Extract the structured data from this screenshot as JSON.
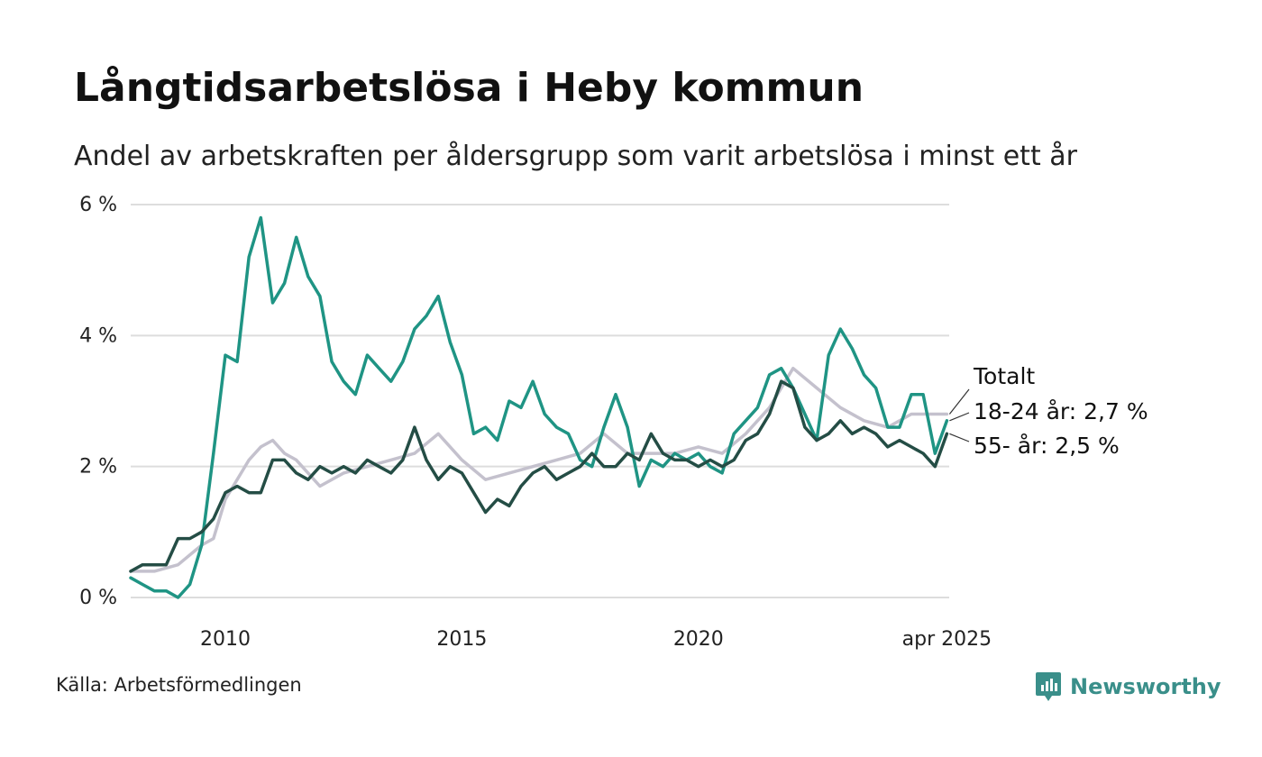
{
  "title": "Långtidsarbetslösa i Heby kommun",
  "subtitle": "Andel av arbetskraften per åldersgrupp som varit arbetslösa i minst ett år",
  "source": "Källa: Arbetsförmedlingen",
  "brand": "Newsworthy",
  "brand_icon": "bar-chart-badge-icon",
  "colors": {
    "youth": "#1f9484",
    "senior": "#244d45",
    "total": "#c4c1cd",
    "grid": "#dddddd",
    "brand": "#3a8f8a"
  },
  "chart_data": {
    "type": "line",
    "x_unit": "year",
    "xlim": [
      2008.0,
      2025.3
    ],
    "ylim": [
      0,
      6
    ],
    "y_ticks": [
      0,
      2,
      4,
      6
    ],
    "y_tick_labels": [
      "0 %",
      "2 %",
      "4 %",
      "6 %"
    ],
    "x_ticks": [
      2010,
      2015,
      2020,
      2025.25
    ],
    "x_tick_labels": [
      "2010",
      "2015",
      "2020",
      "apr 2025"
    ],
    "grid": true,
    "legend": "direct-labels-right",
    "end_labels": {
      "total": "Totalt",
      "youth": "18-24 år: 2,7 %",
      "senior": "55- år: 2,5 %"
    },
    "series": [
      {
        "key": "total",
        "name": "Totalt",
        "x": [
          2008.0,
          2008.5,
          2009.0,
          2009.5,
          2009.75,
          2010.0,
          2010.5,
          2010.75,
          2011.0,
          2011.25,
          2011.5,
          2012.0,
          2012.5,
          2013.0,
          2013.5,
          2014.0,
          2014.5,
          2015.0,
          2015.5,
          2016.0,
          2016.5,
          2017.0,
          2017.5,
          2018.0,
          2018.5,
          2019.0,
          2019.5,
          2020.0,
          2020.5,
          2021.0,
          2021.5,
          2022.0,
          2022.5,
          2023.0,
          2023.5,
          2024.0,
          2024.5,
          2025.0,
          2025.25
        ],
        "y": [
          0.4,
          0.4,
          0.5,
          0.8,
          0.9,
          1.5,
          2.1,
          2.3,
          2.4,
          2.2,
          2.1,
          1.7,
          1.9,
          2.0,
          2.1,
          2.2,
          2.5,
          2.1,
          1.8,
          1.9,
          2.0,
          2.1,
          2.2,
          2.5,
          2.2,
          2.2,
          2.2,
          2.3,
          2.2,
          2.5,
          2.9,
          3.5,
          3.2,
          2.9,
          2.7,
          2.6,
          2.8,
          2.8,
          2.8
        ]
      },
      {
        "key": "youth",
        "name": "18-24 år",
        "x": [
          2008.0,
          2008.25,
          2008.5,
          2008.75,
          2009.0,
          2009.25,
          2009.5,
          2009.75,
          2010.0,
          2010.25,
          2010.5,
          2010.75,
          2011.0,
          2011.25,
          2011.5,
          2011.75,
          2012.0,
          2012.25,
          2012.5,
          2012.75,
          2013.0,
          2013.25,
          2013.5,
          2013.75,
          2014.0,
          2014.25,
          2014.5,
          2014.75,
          2015.0,
          2015.25,
          2015.5,
          2015.75,
          2016.0,
          2016.25,
          2016.5,
          2016.75,
          2017.0,
          2017.25,
          2017.5,
          2017.75,
          2018.0,
          2018.25,
          2018.5,
          2018.75,
          2019.0,
          2019.25,
          2019.5,
          2019.75,
          2020.0,
          2020.25,
          2020.5,
          2020.75,
          2021.0,
          2021.25,
          2021.5,
          2021.75,
          2022.0,
          2022.25,
          2022.5,
          2022.75,
          2023.0,
          2023.25,
          2023.5,
          2023.75,
          2024.0,
          2024.25,
          2024.5,
          2024.75,
          2025.0,
          2025.25
        ],
        "y": [
          0.3,
          0.2,
          0.1,
          0.1,
          0.0,
          0.2,
          0.8,
          2.2,
          3.7,
          3.6,
          5.2,
          5.8,
          4.5,
          4.8,
          5.5,
          4.9,
          4.6,
          3.6,
          3.3,
          3.1,
          3.7,
          3.5,
          3.3,
          3.6,
          4.1,
          4.3,
          4.6,
          3.9,
          3.4,
          2.5,
          2.6,
          2.4,
          3.0,
          2.9,
          3.3,
          2.8,
          2.6,
          2.5,
          2.1,
          2.0,
          2.6,
          3.1,
          2.6,
          1.7,
          2.1,
          2.0,
          2.2,
          2.1,
          2.2,
          2.0,
          1.9,
          2.5,
          2.7,
          2.9,
          3.4,
          3.5,
          3.2,
          2.8,
          2.4,
          3.7,
          4.1,
          3.8,
          3.4,
          3.2,
          2.6,
          2.6,
          3.1,
          3.1,
          2.2,
          2.7
        ]
      },
      {
        "key": "senior",
        "name": "55- år",
        "x": [
          2008.0,
          2008.25,
          2008.5,
          2008.75,
          2009.0,
          2009.25,
          2009.5,
          2009.75,
          2010.0,
          2010.25,
          2010.5,
          2010.75,
          2011.0,
          2011.25,
          2011.5,
          2011.75,
          2012.0,
          2012.25,
          2012.5,
          2012.75,
          2013.0,
          2013.25,
          2013.5,
          2013.75,
          2014.0,
          2014.25,
          2014.5,
          2014.75,
          2015.0,
          2015.25,
          2015.5,
          2015.75,
          2016.0,
          2016.25,
          2016.5,
          2016.75,
          2017.0,
          2017.25,
          2017.5,
          2017.75,
          2018.0,
          2018.25,
          2018.5,
          2018.75,
          2019.0,
          2019.25,
          2019.5,
          2019.75,
          2020.0,
          2020.25,
          2020.5,
          2020.75,
          2021.0,
          2021.25,
          2021.5,
          2021.75,
          2022.0,
          2022.25,
          2022.5,
          2022.75,
          2023.0,
          2023.25,
          2023.5,
          2023.75,
          2024.0,
          2024.25,
          2024.5,
          2024.75,
          2025.0,
          2025.25
        ],
        "y": [
          0.4,
          0.5,
          0.5,
          0.5,
          0.9,
          0.9,
          1.0,
          1.2,
          1.6,
          1.7,
          1.6,
          1.6,
          2.1,
          2.1,
          1.9,
          1.8,
          2.0,
          1.9,
          2.0,
          1.9,
          2.1,
          2.0,
          1.9,
          2.1,
          2.6,
          2.1,
          1.8,
          2.0,
          1.9,
          1.6,
          1.3,
          1.5,
          1.4,
          1.7,
          1.9,
          2.0,
          1.8,
          1.9,
          2.0,
          2.2,
          2.0,
          2.0,
          2.2,
          2.1,
          2.5,
          2.2,
          2.1,
          2.1,
          2.0,
          2.1,
          2.0,
          2.1,
          2.4,
          2.5,
          2.8,
          3.3,
          3.2,
          2.6,
          2.4,
          2.5,
          2.7,
          2.5,
          2.6,
          2.5,
          2.3,
          2.4,
          2.3,
          2.2,
          2.0,
          2.5
        ]
      }
    ]
  }
}
